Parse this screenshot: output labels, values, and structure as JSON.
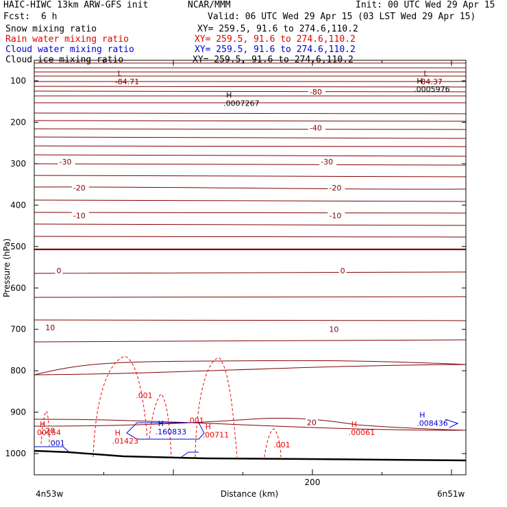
{
  "header": {
    "title": "HAIC-HIWC 13km ARW-GFS init",
    "center": "NCAR/MMM",
    "init": "Init: 00 UTC Wed 29 Apr 15",
    "fcst_label": "Fcst:",
    "fcst_value": "6 h",
    "valid": "Valid: 06 UTC Wed 29 Apr 15 (03 LST Wed 29 Apr 15)",
    "fields": [
      {
        "name": "Snow mixing ratio",
        "xy": "XY= 259.5, 91.6 to 274.6,110.2",
        "color": "#000000"
      },
      {
        "name": "Rain water mixing ratio",
        "xy": "XY= 259.5, 91.6 to 274.6,110.2",
        "color": "#dd0000"
      },
      {
        "name": "Cloud water mixing ratio",
        "xy": "XY= 259.5, 91.6 to 274.6,110.2",
        "color": "#0000cc"
      },
      {
        "name": "Cloud ice mixing ratio",
        "xy": "XY= 259.5, 91.6 to 274.6,110.2",
        "color": "#000000"
      }
    ]
  },
  "chart_data": {
    "type": "line",
    "ylabel": "Pressure (hPa)",
    "xlabel": "Distance (km)",
    "x_start_label": "4n53w",
    "x_end_label": "6n51w",
    "x_range": [
      0,
      310
    ],
    "y_range_hpa": [
      80,
      1050
    ],
    "y_ticks": [
      100,
      200,
      300,
      400,
      500,
      600,
      700,
      800,
      900,
      1000
    ],
    "x_ticks": [
      200
    ],
    "colors": {
      "temperature": "#800000",
      "rain": "#ee0000",
      "cloud": "#0000cc",
      "snow": "#000000",
      "terrain": "#000000"
    },
    "temperature_labels": [
      {
        "text": "-80",
        "x": 198,
        "p": 128
      },
      {
        "text": "-40",
        "x": 198,
        "p": 215
      },
      {
        "text": "-30",
        "x": 18,
        "p": 297
      },
      {
        "text": "-30",
        "x": 206,
        "p": 297
      },
      {
        "text": "-20",
        "x": 28,
        "p": 360
      },
      {
        "text": "-20",
        "x": 212,
        "p": 360
      },
      {
        "text": "-10",
        "x": 28,
        "p": 427
      },
      {
        "text": "-10",
        "x": 212,
        "p": 427
      },
      {
        "text": "0",
        "x": 16,
        "p": 560
      },
      {
        "text": "0",
        "x": 220,
        "p": 560
      },
      {
        "text": "10",
        "x": 8,
        "p": 697
      },
      {
        "text": "10",
        "x": 212,
        "p": 701
      },
      {
        "text": "20",
        "x": 196,
        "p": 926
      },
      {
        "text": "20",
        "x": 8,
        "p": 946
      }
    ],
    "extrema": [
      {
        "kind": "L",
        "value": "-84.71",
        "x": 58,
        "p": 100,
        "field": "temperature"
      },
      {
        "kind": "L",
        "value": "84.37",
        "x": 278,
        "p": 100,
        "field": "temperature"
      },
      {
        "kind": "H",
        "value": ".0005976",
        "x": 273,
        "p": 118,
        "field": "snow"
      },
      {
        "kind": "H",
        "value": ".0007267",
        "x": 136,
        "p": 152,
        "field": "snow"
      },
      {
        "kind": "H",
        "value": "00154",
        "x": 2,
        "p": 947,
        "field": "rain"
      },
      {
        "kind": "H",
        "value": ".01423",
        "x": 56,
        "p": 968,
        "field": "rain"
      },
      {
        "kind": "H",
        "value": ".160833",
        "x": 87,
        "p": 945,
        "field": "cloud"
      },
      {
        "kind": "H",
        "value": ".00711",
        "x": 121,
        "p": 953,
        "field": "rain"
      },
      {
        "kind": "H",
        "value": ".00061",
        "x": 226,
        "p": 947,
        "field": "rain"
      },
      {
        "kind": "H",
        "value": ".008436",
        "x": 275,
        "p": 925,
        "field": "cloud"
      }
    ],
    "rain_labels": [
      {
        "text": ".001",
        "x": 73,
        "p": 866
      },
      {
        "text": ".001",
        "x": 110,
        "p": 926
      },
      {
        "text": ".001",
        "x": 172,
        "p": 985
      }
    ],
    "cloud_labels": [
      {
        "text": ".001",
        "x": 10,
        "p": 981
      }
    ]
  }
}
